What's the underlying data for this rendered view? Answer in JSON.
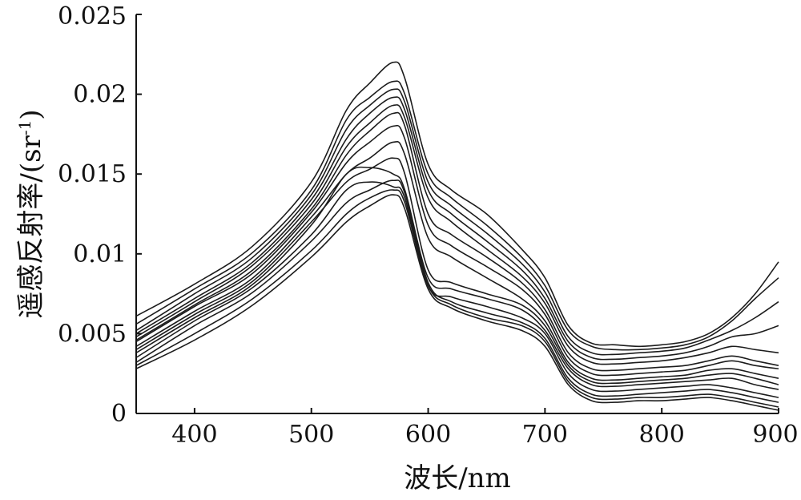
{
  "chart_data": {
    "type": "line",
    "title": "",
    "xlabel": "波长/nm",
    "ylabel_main": "遥感反射率/(sr",
    "ylabel_sup": "-1",
    "ylabel_close": ")",
    "xlim": [
      350,
      900
    ],
    "ylim": [
      0,
      0.025
    ],
    "x_ticks": [
      400,
      500,
      600,
      700,
      800,
      900
    ],
    "x_tick_labels": [
      "400",
      "500",
      "600",
      "700",
      "800",
      "900"
    ],
    "y_ticks": [
      0,
      0.005,
      0.01,
      0.015,
      0.02,
      0.025
    ],
    "y_tick_labels": [
      "0",
      "0.005",
      "0.01",
      "0.015",
      "0.02",
      "0.025"
    ],
    "grid": false,
    "legend": "none",
    "line_color": "#1c1c1c",
    "x": [
      350,
      400,
      450,
      500,
      530,
      550,
      570,
      580,
      600,
      620,
      650,
      680,
      700,
      720,
      740,
      760,
      780,
      800,
      820,
      840,
      860,
      880,
      900
    ],
    "series": [
      {
        "values": [
          0.0061,
          0.0081,
          0.0105,
          0.0145,
          0.019,
          0.0207,
          0.022,
          0.021,
          0.0156,
          0.014,
          0.0125,
          0.0103,
          0.0085,
          0.0055,
          0.0044,
          0.0043,
          0.0042,
          0.0043,
          0.0045,
          0.005,
          0.006,
          0.0075,
          0.0095
        ]
      },
      {
        "values": [
          0.0056,
          0.0078,
          0.0101,
          0.014,
          0.0184,
          0.0198,
          0.0208,
          0.02,
          0.015,
          0.0135,
          0.0118,
          0.0098,
          0.008,
          0.0052,
          0.0042,
          0.004,
          0.004,
          0.0041,
          0.0043,
          0.0048,
          0.0058,
          0.0072,
          0.0085
        ]
      },
      {
        "values": [
          0.0052,
          0.0075,
          0.0098,
          0.0137,
          0.0178,
          0.0193,
          0.0203,
          0.0195,
          0.0145,
          0.013,
          0.0113,
          0.0094,
          0.0076,
          0.0048,
          0.0038,
          0.0037,
          0.0038,
          0.0039,
          0.0041,
          0.0046,
          0.0052,
          0.006,
          0.007
        ]
      },
      {
        "values": [
          0.005,
          0.0072,
          0.0095,
          0.0134,
          0.0172,
          0.0188,
          0.0198,
          0.019,
          0.014,
          0.0125,
          0.0108,
          0.009,
          0.0072,
          0.0045,
          0.0035,
          0.0034,
          0.0035,
          0.0036,
          0.0038,
          0.0042,
          0.0048,
          0.005,
          0.0055
        ]
      },
      {
        "values": [
          0.0048,
          0.007,
          0.0093,
          0.0131,
          0.0167,
          0.0182,
          0.0193,
          0.0185,
          0.0135,
          0.012,
          0.0103,
          0.0086,
          0.0069,
          0.0042,
          0.0032,
          0.0031,
          0.0032,
          0.0033,
          0.0035,
          0.0038,
          0.0042,
          0.004,
          0.0038
        ]
      },
      {
        "values": [
          0.0046,
          0.0068,
          0.009,
          0.0128,
          0.0162,
          0.0177,
          0.0188,
          0.018,
          0.0125,
          0.0112,
          0.0098,
          0.0082,
          0.0065,
          0.0038,
          0.0028,
          0.0027,
          0.0028,
          0.0029,
          0.003,
          0.0033,
          0.0036,
          0.0033,
          0.003
        ]
      },
      {
        "values": [
          0.0045,
          0.0067,
          0.0088,
          0.0126,
          0.0157,
          0.017,
          0.018,
          0.0172,
          0.0118,
          0.0105,
          0.0092,
          0.0078,
          0.0062,
          0.0035,
          0.0025,
          0.0024,
          0.0025,
          0.0026,
          0.0027,
          0.003,
          0.0033,
          0.003,
          0.0028
        ]
      },
      {
        "values": [
          0.0042,
          0.0064,
          0.0085,
          0.0123,
          0.015,
          0.016,
          0.017,
          0.0162,
          0.011,
          0.0098,
          0.0085,
          0.0072,
          0.0058,
          0.0032,
          0.0022,
          0.0021,
          0.0022,
          0.0023,
          0.0024,
          0.0027,
          0.0028,
          0.0025,
          0.0022
        ]
      },
      {
        "values": [
          0.004,
          0.0062,
          0.0083,
          0.012,
          0.0145,
          0.0153,
          0.016,
          0.015,
          0.009,
          0.0082,
          0.0075,
          0.0068,
          0.0055,
          0.003,
          0.002,
          0.0019,
          0.002,
          0.0021,
          0.0022,
          0.0024,
          0.0025,
          0.0022,
          0.0018
        ]
      },
      {
        "values": [
          0.0038,
          0.006,
          0.0081,
          0.0118,
          0.015,
          0.0154,
          0.015,
          0.014,
          0.0085,
          0.0078,
          0.0072,
          0.0065,
          0.0052,
          0.0028,
          0.0018,
          0.0017,
          0.0018,
          0.0019,
          0.002,
          0.0021,
          0.0022,
          0.0018,
          0.0015
        ]
      },
      {
        "values": [
          0.0035,
          0.0058,
          0.0079,
          0.0112,
          0.014,
          0.0145,
          0.0142,
          0.0135,
          0.008,
          0.0073,
          0.0067,
          0.006,
          0.005,
          0.0025,
          0.0015,
          0.0014,
          0.0015,
          0.0016,
          0.0017,
          0.0018,
          0.0016,
          0.0013,
          0.001
        ]
      },
      {
        "values": [
          0.0032,
          0.0055,
          0.0076,
          0.0108,
          0.0132,
          0.014,
          0.0146,
          0.0138,
          0.0082,
          0.007,
          0.0063,
          0.0057,
          0.0047,
          0.0022,
          0.0012,
          0.0011,
          0.0012,
          0.0013,
          0.0014,
          0.0015,
          0.0013,
          0.001,
          0.0007
        ]
      },
      {
        "values": [
          0.003,
          0.005,
          0.0072,
          0.0102,
          0.0125,
          0.0135,
          0.014,
          0.0132,
          0.008,
          0.0068,
          0.006,
          0.0055,
          0.0045,
          0.002,
          0.001,
          0.0009,
          0.001,
          0.001,
          0.0011,
          0.0012,
          0.001,
          0.0007,
          0.0004
        ]
      },
      {
        "values": [
          0.0028,
          0.0046,
          0.0068,
          0.0098,
          0.012,
          0.013,
          0.0137,
          0.0128,
          0.0078,
          0.0066,
          0.0058,
          0.0052,
          0.0042,
          0.0018,
          0.0008,
          0.0007,
          0.0008,
          0.0008,
          0.0009,
          0.001,
          0.0008,
          0.0005,
          0.0002
        ]
      }
    ]
  }
}
